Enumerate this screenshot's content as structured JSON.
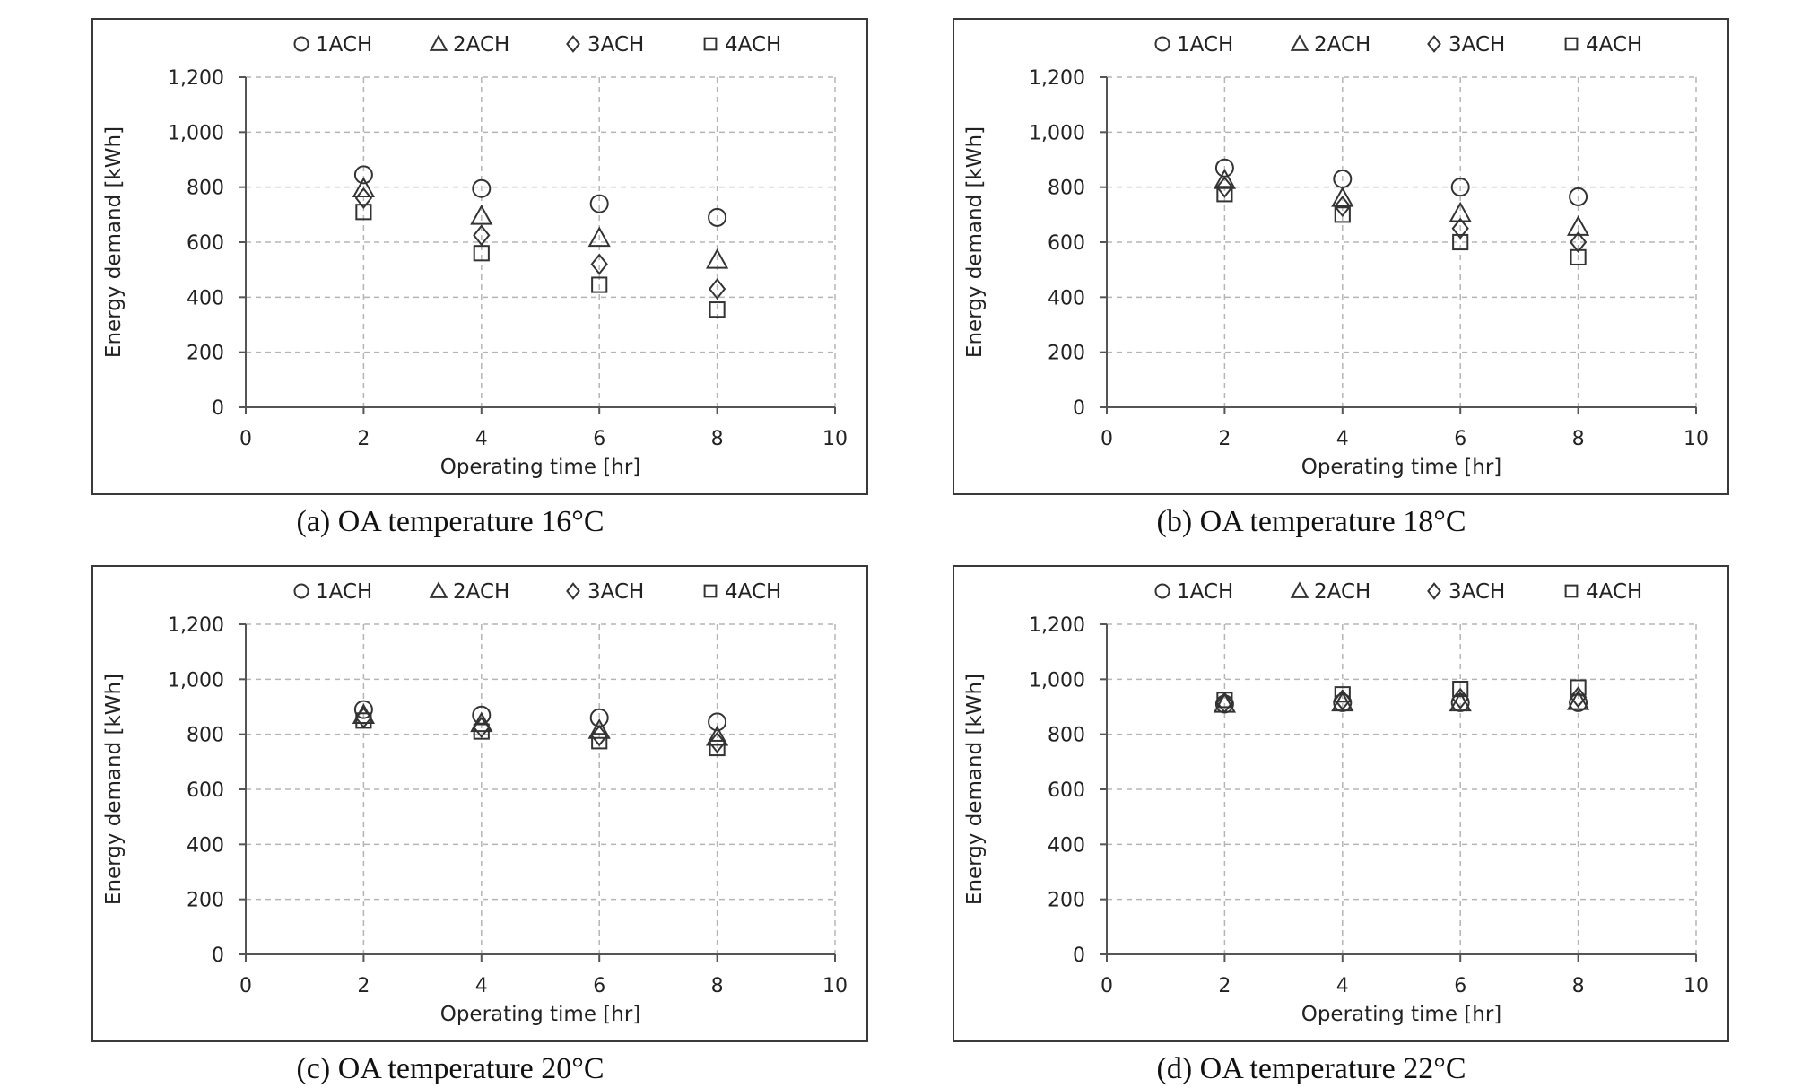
{
  "figure": {
    "legend_marker_order": [
      "circle",
      "triangle",
      "diamond",
      "square"
    ]
  },
  "chart_data": [
    {
      "type": "scatter",
      "title": "(a) OA temperature 16°C",
      "xlabel": "Operating time [hr]",
      "ylabel": "Energy demand [kWh]",
      "xlim": [
        0,
        10
      ],
      "ylim": [
        0,
        1200
      ],
      "xticks": [
        0,
        2,
        4,
        6,
        8,
        10
      ],
      "yticks": [
        0,
        200,
        400,
        600,
        800,
        1000,
        1200
      ],
      "ytick_labels": [
        "0",
        "200",
        "400",
        "600",
        "800",
        "1,000",
        "1,200"
      ],
      "grid": true,
      "legend_position": "top",
      "x": [
        2,
        4,
        6,
        8
      ],
      "series": [
        {
          "name": "1ACH",
          "marker": "circle",
          "values": [
            845,
            795,
            740,
            690
          ]
        },
        {
          "name": "2ACH",
          "marker": "triangle",
          "values": [
            795,
            695,
            615,
            535
          ]
        },
        {
          "name": "3ACH",
          "marker": "diamond",
          "values": [
            760,
            625,
            520,
            430
          ]
        },
        {
          "name": "4ACH",
          "marker": "square",
          "values": [
            710,
            560,
            445,
            355
          ]
        }
      ]
    },
    {
      "type": "scatter",
      "title": "(b) OA temperature 18°C",
      "xlabel": "Operating time [hr]",
      "ylabel": "Energy demand [kWh]",
      "xlim": [
        0,
        10
      ],
      "ylim": [
        0,
        1200
      ],
      "xticks": [
        0,
        2,
        4,
        6,
        8,
        10
      ],
      "yticks": [
        0,
        200,
        400,
        600,
        800,
        1000,
        1200
      ],
      "ytick_labels": [
        "0",
        "200",
        "400",
        "600",
        "800",
        "1,000",
        "1,200"
      ],
      "grid": true,
      "legend_position": "top",
      "x": [
        2,
        4,
        6,
        8
      ],
      "series": [
        {
          "name": "1ACH",
          "marker": "circle",
          "values": [
            870,
            830,
            800,
            765
          ]
        },
        {
          "name": "2ACH",
          "marker": "triangle",
          "values": [
            825,
            760,
            705,
            655
          ]
        },
        {
          "name": "3ACH",
          "marker": "diamond",
          "values": [
            800,
            730,
            650,
            600
          ]
        },
        {
          "name": "4ACH",
          "marker": "square",
          "values": [
            775,
            700,
            600,
            545
          ]
        }
      ]
    },
    {
      "type": "scatter",
      "title": "(c) OA temperature 20°C",
      "xlabel": "Operating time [hr]",
      "ylabel": "Energy demand [kWh]",
      "xlim": [
        0,
        10
      ],
      "ylim": [
        0,
        1200
      ],
      "xticks": [
        0,
        2,
        4,
        6,
        8,
        10
      ],
      "yticks": [
        0,
        200,
        400,
        600,
        800,
        1000,
        1200
      ],
      "ytick_labels": [
        "0",
        "200",
        "400",
        "600",
        "800",
        "1,000",
        "1,200"
      ],
      "grid": true,
      "legend_position": "top",
      "x": [
        2,
        4,
        6,
        8
      ],
      "series": [
        {
          "name": "1ACH",
          "marker": "circle",
          "values": [
            890,
            870,
            860,
            845
          ]
        },
        {
          "name": "2ACH",
          "marker": "triangle",
          "values": [
            870,
            840,
            815,
            790
          ]
        },
        {
          "name": "3ACH",
          "marker": "diamond",
          "values": [
            860,
            825,
            795,
            770
          ]
        },
        {
          "name": "4ACH",
          "marker": "square",
          "values": [
            850,
            810,
            775,
            750
          ]
        }
      ]
    },
    {
      "type": "scatter",
      "title": "(d) OA temperature 22°C",
      "xlabel": "Operating time [hr]",
      "ylabel": "Energy demand [kWh]",
      "xlim": [
        0,
        10
      ],
      "ylim": [
        0,
        1200
      ],
      "xticks": [
        0,
        2,
        4,
        6,
        8,
        10
      ],
      "yticks": [
        0,
        200,
        400,
        600,
        800,
        1000,
        1200
      ],
      "ytick_labels": [
        "0",
        "200",
        "400",
        "600",
        "800",
        "1,000",
        "1,200"
      ],
      "grid": true,
      "legend_position": "top",
      "x": [
        2,
        4,
        6,
        8
      ],
      "series": [
        {
          "name": "1ACH",
          "marker": "circle",
          "values": [
            910,
            915,
            915,
            915
          ]
        },
        {
          "name": "2ACH",
          "marker": "triangle",
          "values": [
            910,
            915,
            915,
            920
          ]
        },
        {
          "name": "3ACH",
          "marker": "diamond",
          "values": [
            915,
            925,
            930,
            935
          ]
        },
        {
          "name": "4ACH",
          "marker": "square",
          "values": [
            925,
            945,
            965,
            970
          ]
        }
      ]
    }
  ]
}
